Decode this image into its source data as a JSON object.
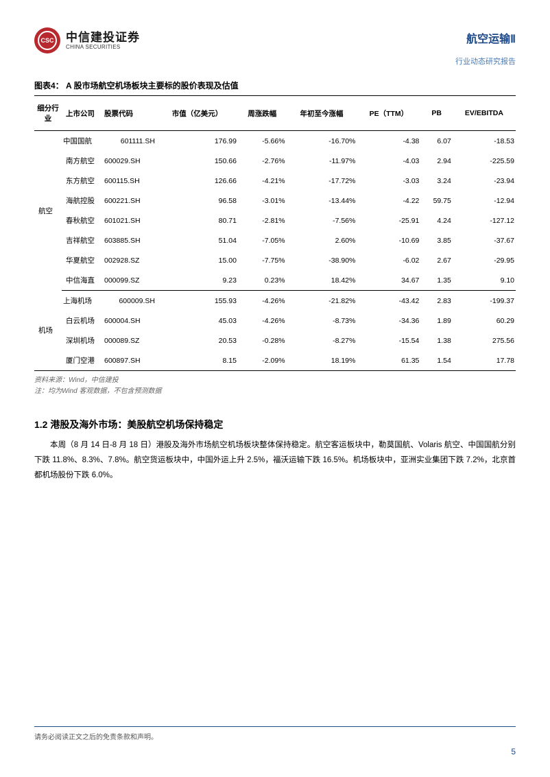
{
  "header": {
    "logo_cn": "中信建投证券",
    "logo_en": "CHINA SECURITIES",
    "category": "航空运输Ⅱ",
    "report_type": "行业动态研究报告"
  },
  "figure_title": "图表4：  A 股市场航空机场板块主要标的股价表现及估值",
  "table": {
    "columns": [
      "细分行业",
      "上市公司",
      "股票代码",
      "市值（亿美元）",
      "周涨跌幅",
      "年初至今涨幅",
      "PE（TTM）",
      "PB",
      "EV/EBITDA"
    ],
    "groups": [
      {
        "name": "航空",
        "rows": [
          [
            "中国国航",
            "601111.SH",
            "176.99",
            "-5.66%",
            "-16.70%",
            "-4.38",
            "6.07",
            "-18.53"
          ],
          [
            "南方航空",
            "600029.SH",
            "150.66",
            "-2.76%",
            "-11.97%",
            "-4.03",
            "2.94",
            "-225.59"
          ],
          [
            "东方航空",
            "600115.SH",
            "126.66",
            "-4.21%",
            "-17.72%",
            "-3.03",
            "3.24",
            "-23.94"
          ],
          [
            "海航控股",
            "600221.SH",
            "96.58",
            "-3.01%",
            "-13.44%",
            "-4.22",
            "59.75",
            "-12.94"
          ],
          [
            "春秋航空",
            "601021.SH",
            "80.71",
            "-2.81%",
            "-7.56%",
            "-25.91",
            "4.24",
            "-127.12"
          ],
          [
            "吉祥航空",
            "603885.SH",
            "51.04",
            "-7.05%",
            "2.60%",
            "-10.69",
            "3.85",
            "-37.67"
          ],
          [
            "华夏航空",
            "002928.SZ",
            "15.00",
            "-7.75%",
            "-38.90%",
            "-6.02",
            "2.67",
            "-29.95"
          ],
          [
            "中信海直",
            "000099.SZ",
            "9.23",
            "0.23%",
            "18.42%",
            "34.67",
            "1.35",
            "9.10"
          ]
        ]
      },
      {
        "name": "机场",
        "rows": [
          [
            "上海机场",
            "600009.SH",
            "155.93",
            "-4.26%",
            "-21.82%",
            "-43.42",
            "2.83",
            "-199.37"
          ],
          [
            "白云机场",
            "600004.SH",
            "45.03",
            "-4.26%",
            "-8.73%",
            "-34.36",
            "1.89",
            "60.29"
          ],
          [
            "深圳机场",
            "000089.SZ",
            "20.53",
            "-0.28%",
            "-8.27%",
            "-15.54",
            "1.38",
            "275.56"
          ],
          [
            "厦门空港",
            "600897.SH",
            "8.15",
            "-2.09%",
            "18.19%",
            "61.35",
            "1.54",
            "17.78"
          ]
        ]
      }
    ]
  },
  "source_lines": [
    "资料来源：Wind，中信建投",
    "注：均为Wind 客观数据，不包含预测数据"
  ],
  "section_title": "1.2 港股及海外市场：美股航空机场保持稳定",
  "paragraph": "本周（8 月 14 日-8 月 18 日）港股及海外市场航空机场板块整体保持稳定。航空客运板块中，勒莫国航、Volaris 航空、中国国航分别下跌 11.8%、8.3%、7.8%。航空货运板块中，中国外运上升 2.5%，福沃运输下跌 16.5%。机场板块中，亚洲实业集团下跌 7.2%，北京首都机场股份下跌 6.0%。",
  "footer": {
    "disclaimer": "请务必阅读正文之后的免责条款和声明。",
    "page": "5"
  }
}
